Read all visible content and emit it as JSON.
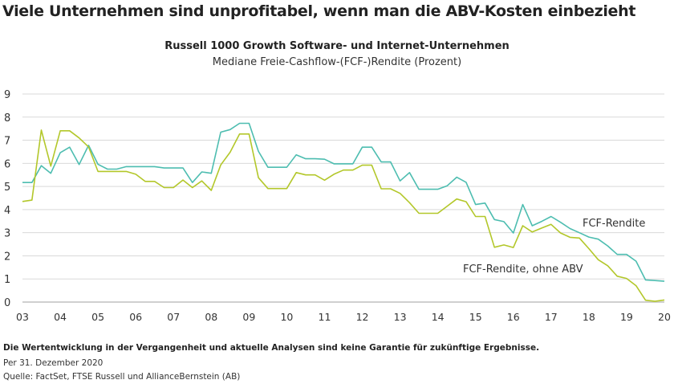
{
  "title": "Viele Unternehmen sind unprofitabel, wenn man die ABV-Kosten einbezieht",
  "footer": {
    "disclaimer": "Die Wertentwicklung in der Vergangenheit und aktuelle Analysen sind keine Garantie für zukünftige Ergebnisse.",
    "date": "Per 31. Dezember 2020",
    "source": "Quelle: FactSet, FTSE Russell und AllianceBernstein (AB)"
  },
  "chart_data": {
    "type": "line",
    "title": "Russell 1000 Growth Software- und Internet-Unternehmen",
    "subtitle": "Mediane Freie-Cashflow-(FCF-)Rendite (Prozent)",
    "xlabel": "",
    "ylabel": "",
    "x_frequency": "quarterly",
    "x_start": "2003",
    "x_end": "2020",
    "x_tick_labels": [
      "03",
      "04",
      "05",
      "06",
      "07",
      "08",
      "09",
      "10",
      "11",
      "12",
      "13",
      "14",
      "15",
      "16",
      "17",
      "18",
      "19",
      "20"
    ],
    "ylim": [
      0,
      9
    ],
    "y_ticks": [
      0,
      1,
      2,
      3,
      4,
      5,
      6,
      7,
      8,
      9
    ],
    "grid": true,
    "series": [
      {
        "name": "FCF-Rendite",
        "color": "#4dbdb0",
        "values": [
          5.17,
          5.17,
          5.9,
          5.57,
          6.46,
          6.7,
          5.95,
          6.78,
          5.96,
          5.75,
          5.75,
          5.86,
          5.86,
          5.86,
          5.86,
          5.8,
          5.8,
          5.8,
          5.17,
          5.63,
          5.57,
          7.35,
          7.46,
          7.73,
          7.73,
          6.52,
          5.83,
          5.83,
          5.83,
          6.37,
          6.2,
          6.2,
          6.18,
          5.98,
          5.98,
          5.98,
          6.7,
          6.7,
          6.06,
          6.06,
          5.24,
          5.6,
          4.88,
          4.88,
          4.88,
          5.03,
          5.4,
          5.18,
          4.22,
          4.28,
          3.57,
          3.48,
          2.99,
          4.22,
          3.3,
          3.49,
          3.7,
          3.45,
          3.18,
          3.0,
          2.81,
          2.72,
          2.43,
          2.06,
          2.06,
          1.77,
          0.96,
          0.93,
          0.9
        ]
      },
      {
        "name": "FCF-Rendite, ohne ABV",
        "color": "#b3c72a",
        "values": [
          4.35,
          4.41,
          7.44,
          5.88,
          7.41,
          7.41,
          7.1,
          6.71,
          5.65,
          5.65,
          5.65,
          5.65,
          5.53,
          5.22,
          5.22,
          4.95,
          4.95,
          5.28,
          4.95,
          5.24,
          4.83,
          5.93,
          6.48,
          7.27,
          7.27,
          5.38,
          4.91,
          4.91,
          4.91,
          5.6,
          5.5,
          5.5,
          5.27,
          5.53,
          5.71,
          5.71,
          5.92,
          5.92,
          4.9,
          4.9,
          4.7,
          4.3,
          3.84,
          3.84,
          3.84,
          4.15,
          4.46,
          4.34,
          3.7,
          3.7,
          2.37,
          2.47,
          2.36,
          3.3,
          3.03,
          3.2,
          3.36,
          2.99,
          2.8,
          2.77,
          2.31,
          1.83,
          1.57,
          1.12,
          1.02,
          0.71,
          0.08,
          0.03,
          0.09
        ]
      }
    ]
  }
}
